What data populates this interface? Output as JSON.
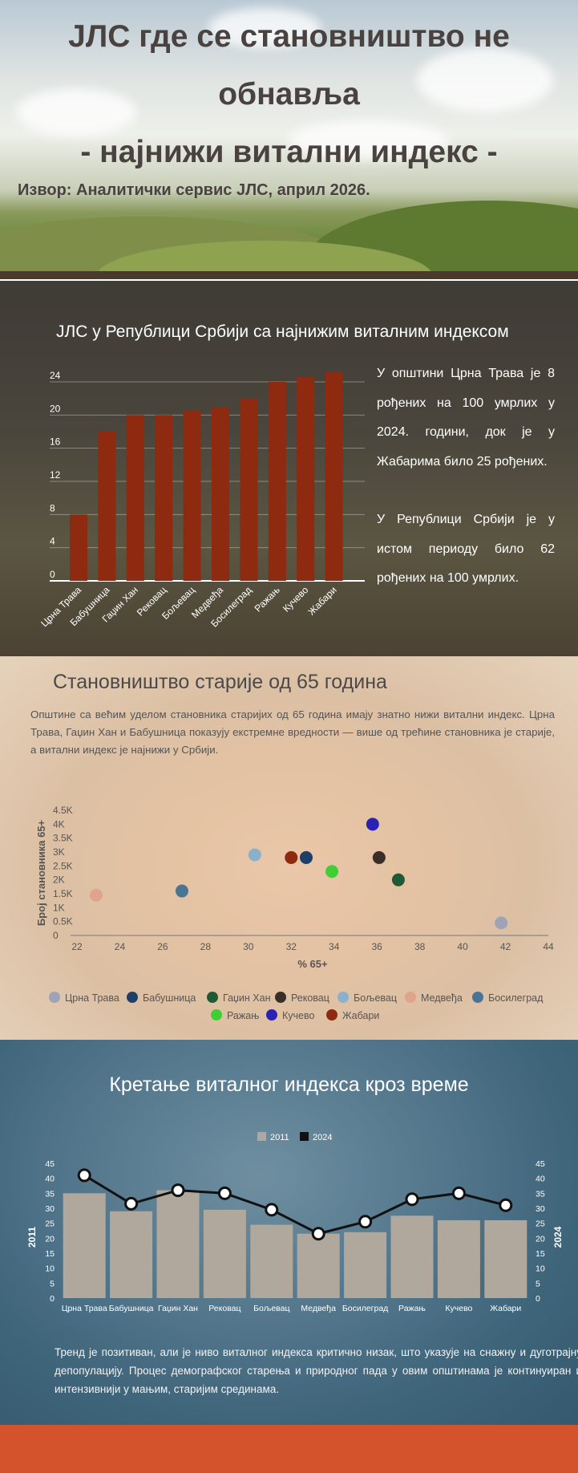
{
  "header": {
    "title_lines": [
      "ЈЛС где се становништво не",
      "обнавља",
      "- најнижи витални индекс -"
    ],
    "source": "Извор: Аналитички сервис ЈЛС, април 2026."
  },
  "section_birth": {
    "title": "ЈЛС у Републици Србији са најнижим виталним индексом",
    "paragraphs": [
      "У општини Црна Трава је 8 рођених на 100 умрлих у 2024. години, док је у Жабарима било 25 рођених.",
      "У Републици Србији је у истом периоду било 62 рођених на 100 умрлих."
    ]
  },
  "section_elderly": {
    "title": "Становништво старије од 65 година",
    "text": "Општине са већим уделом становника старијих од 65 година имају знатно нижи витални индекс. Црна Трава, Гаџин Хан и Бабушница показују екстремне вредности — више од трећине становника је старије, а витални индекс је најнижи у Србији."
  },
  "section_trend": {
    "title": "Кретање виталног индекса кроз време",
    "text": "Тренд је позитиван, али је ниво виталног индекса критично низак, што указује на снажну и дуготрајну депопулацију. Процес демографског старења и природног пада у овим општинама је континуиран и интензивнији у мањим, старијим срединама."
  },
  "colors": {
    "bar_red": "#8e2a10",
    "footer": "#d4532c",
    "bar_2011": "#b0a89d",
    "line_2024": "#111111"
  },
  "chart_data": [
    {
      "type": "bar",
      "categories": [
        "Црна Трава",
        "Бабушница",
        "Гаџин Хан",
        "Рековац",
        "Бољевац",
        "Медвеђа",
        "Босилеград",
        "Ражањ",
        "Кучево",
        "Жабари"
      ],
      "values": [
        8,
        18,
        20,
        20,
        20.6,
        21,
        22,
        24,
        24.6,
        25.2
      ],
      "ylim": [
        0,
        24
      ],
      "yticks": [
        0,
        4,
        8,
        12,
        16,
        20,
        24
      ],
      "grid": true
    },
    {
      "type": "scatter",
      "xlabel": "% 65+",
      "ylabel": "Број становника 65+",
      "xlim": [
        22,
        44
      ],
      "xticks": [
        22,
        24,
        26,
        28,
        30,
        32,
        34,
        36,
        38,
        40,
        42,
        44
      ],
      "ylim": [
        0,
        4500
      ],
      "yticks": [
        "0",
        "0.5K",
        "1K",
        "1.5K",
        "2K",
        "2.5K",
        "3K",
        "3.5K",
        "4K",
        "4.5K"
      ],
      "legend_position": "bottom",
      "series": [
        {
          "name": "Црна Трава",
          "x": 41.8,
          "y": 450,
          "color": "#9ea3b5"
        },
        {
          "name": "Бабушница",
          "x": 32.7,
          "y": 2800,
          "color": "#1f3f6b"
        },
        {
          "name": "Гаџин Хан",
          "x": 37.0,
          "y": 2000,
          "color": "#1f5a34"
        },
        {
          "name": "Рековац",
          "x": 36.1,
          "y": 2800,
          "color": "#3a2f28"
        },
        {
          "name": "Бољевац",
          "x": 30.3,
          "y": 2900,
          "color": "#8bb0cc"
        },
        {
          "name": "Медвеђа",
          "x": 22.9,
          "y": 1450,
          "color": "#e0a48a"
        },
        {
          "name": "Босилеград",
          "x": 26.9,
          "y": 1600,
          "color": "#4a7493"
        },
        {
          "name": "Ражањ",
          "x": 33.9,
          "y": 2300,
          "color": "#3fcf34"
        },
        {
          "name": "Кучево",
          "x": 35.8,
          "y": 4000,
          "color": "#2b22b5"
        },
        {
          "name": "Жабари",
          "x": 32.0,
          "y": 2800,
          "color": "#8e2a10"
        }
      ]
    },
    {
      "type": "bar",
      "categories": [
        "Црна Трава",
        "Бабушница",
        "Гаџин Хан",
        "Рековац",
        "Бољевац",
        "Медвеђа",
        "Босилеград",
        "Ражањ",
        "Кучево",
        "Жабари"
      ],
      "ylim": [
        0,
        45
      ],
      "yticks": [
        0,
        5,
        10,
        15,
        20,
        25,
        30,
        35,
        40,
        45
      ],
      "ylabel_left": "2011",
      "ylabel_right": "2024",
      "legend_position": "top",
      "series": [
        {
          "name": "2011",
          "kind": "bar",
          "values": [
            35,
            29,
            36,
            29.5,
            24.5,
            21.5,
            22,
            27.5,
            26,
            26
          ]
        },
        {
          "name": "2024",
          "kind": "line",
          "values": [
            41,
            31.5,
            36,
            35,
            29.5,
            21.5,
            25.5,
            33,
            35,
            31
          ]
        }
      ]
    }
  ]
}
